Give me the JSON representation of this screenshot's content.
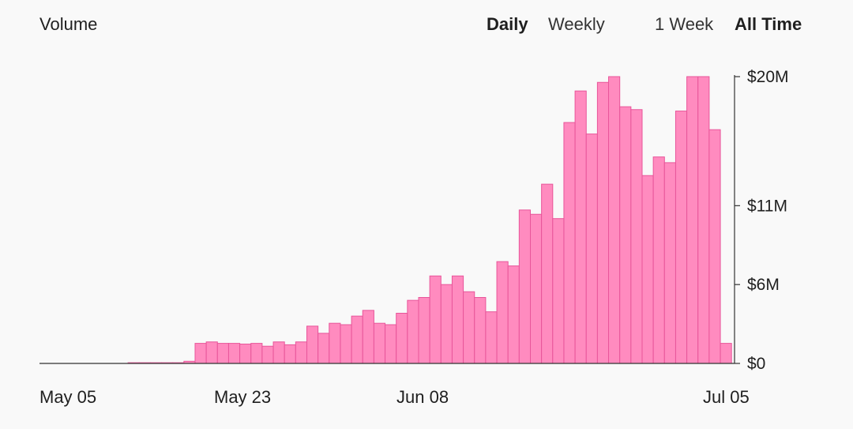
{
  "header": {
    "title": "Volume",
    "toggles": [
      {
        "label": "Daily",
        "active": true
      },
      {
        "label": "Weekly",
        "active": false
      },
      {
        "label": "1 Week",
        "active": false
      },
      {
        "label": "All Time",
        "active": true
      }
    ]
  },
  "colors": {
    "bar_fill": "#ff8bbf",
    "bar_stroke": "#e8559a",
    "axis": "#333333"
  },
  "chart_data": {
    "type": "bar",
    "title": "Volume",
    "xlabel": "",
    "ylabel": "",
    "x_tick_labels": [
      "May 05",
      "May 23",
      "Jun 08",
      "Jul 05"
    ],
    "y_tick_labels": [
      "$0",
      "$6M",
      "$11M",
      "$20M"
    ],
    "y_ticks": [
      0,
      5.5,
      11,
      20
    ],
    "ylim": [
      0,
      20
    ],
    "y_unit": "$M",
    "grid": false,
    "series": [
      {
        "values": [
          0,
          0,
          0,
          0,
          0,
          0,
          0,
          0.05,
          0.05,
          0.05,
          0.05,
          0.05,
          0.15,
          1.4,
          1.5,
          1.4,
          1.4,
          1.35,
          1.4,
          1.2,
          1.5,
          1.3,
          1.5,
          2.6,
          2.1,
          2.8,
          2.7,
          3.3,
          3.7,
          2.8,
          2.7,
          3.5,
          4.4,
          4.6,
          6.1,
          5.5,
          6.1,
          5.0,
          4.6,
          3.6,
          7.1,
          6.8,
          10.7,
          10.4,
          12.5,
          10.1,
          16.8,
          19.0,
          16.0,
          19.6,
          20.0,
          17.9,
          17.7,
          13.1,
          14.4,
          14.0,
          17.6,
          20.0,
          20.0,
          16.3,
          1.4
        ]
      }
    ]
  }
}
